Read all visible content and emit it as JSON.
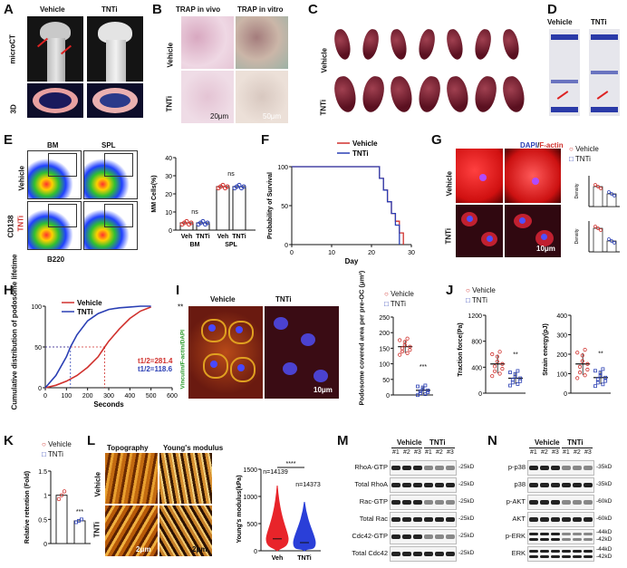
{
  "legend": {
    "vehicle": "Vehicle",
    "tnti": "TNTi"
  },
  "panelA": {
    "letter": "A",
    "row1": "microCT",
    "row2": "3D",
    "vehicle": "Vehicle",
    "tnti": "TNTi"
  },
  "panelB": {
    "letter": "B",
    "col1": "TRAP in vivo",
    "col2": "TRAP in vitro",
    "row1": "Vehicle",
    "row2": "TNTi",
    "scale1": "20μm",
    "scale2": "50μm"
  },
  "panelC": {
    "letter": "C",
    "row1": "Vehicle",
    "row2": "TNTi"
  },
  "panelD": {
    "letter": "D",
    "vehicle": "Vehicle",
    "tnti": "TNTi"
  },
  "panelE": {
    "letter": "E",
    "bm": "BM",
    "spl": "SPL",
    "row1": "Vehicle",
    "row2": "TNTi",
    "yaxis": "CD138",
    "xaxis": "B220",
    "ylabel": "MM Cells(%)",
    "ns": "ns",
    "groups": [
      "Veh",
      "TNTi",
      "Veh",
      "TNTi"
    ],
    "group_labels": [
      "BM",
      "SPL"
    ]
  },
  "panelF": {
    "letter": "F",
    "ylabel": "Probability of Survival",
    "xlabel": "Day"
  },
  "panelG": {
    "letter": "G",
    "stain_dapi": "DAPI",
    "stain_factin": "F-actin",
    "row1": "Vehicle",
    "row2": "TNTi",
    "scale": "10μm",
    "density_label": "Density"
  },
  "panelH": {
    "letter": "H",
    "ylabel": "Cumulative distribution of podosome lifetime",
    "xlabel": "Seconds",
    "sig": "**",
    "t_vehicle": "t1/2=281.4",
    "t_tnti": "t1/2=118.6"
  },
  "panelI": {
    "letter": "I",
    "vehicle": "Vehicle",
    "tnti": "TNTi",
    "side": "Vinculin/F-actin/DAPI",
    "scale": "10μm",
    "ylabel": "Podosome covered area per pre-OC (μm²)",
    "sig": "***"
  },
  "panelJ": {
    "letter": "J",
    "ylabel1": "Traction force(Pa)",
    "ylabel2": "Strain energy(pJ)",
    "sig": "**"
  },
  "panelK": {
    "letter": "K",
    "ylabel": "Relative retention (Fold)",
    "sig": "***"
  },
  "panelL": {
    "letter": "L",
    "col1": "Topography",
    "col2": "Young's modulus",
    "row1": "Vehicle",
    "row2": "TNTi",
    "scale1": "2μm",
    "scale2": "2μm",
    "ylabel": "Young's modulus(kPa)",
    "n1": "n=14139",
    "n2": "n=14373",
    "sig": "****",
    "x1": "Veh",
    "x2": "TNTi"
  },
  "panelM": {
    "letter": "M",
    "vehicle": "Vehicle",
    "tnti": "TNTi",
    "lanes": [
      "#1",
      "#2",
      "#3",
      "#1",
      "#2",
      "#3"
    ],
    "rows": [
      {
        "label": "RhoA-GTP",
        "kd": "25kD"
      },
      {
        "label": "Total RhoA",
        "kd": "25kD"
      },
      {
        "label": "Rac-GTP",
        "kd": "25kD"
      },
      {
        "label": "Total Rac",
        "kd": "25kD"
      },
      {
        "label": "Cdc42-GTP",
        "kd": "25kD"
      },
      {
        "label": "Total Cdc42",
        "kd": "25kD"
      }
    ]
  },
  "panelN": {
    "letter": "N",
    "vehicle": "Vehicle",
    "tnti": "TNTi",
    "lanes": [
      "#1",
      "#2",
      "#3",
      "#1",
      "#2",
      "#3"
    ],
    "rows": [
      {
        "label": "p-p38",
        "kd": "35kD"
      },
      {
        "label": "p38",
        "kd": "35kD"
      },
      {
        "label": "p-AKT",
        "kd": "60kD"
      },
      {
        "label": "AKT",
        "kd": "60kD"
      },
      {
        "label": "p-ERK",
        "kd": "44kD",
        "kd2": "42kD"
      },
      {
        "label": "ERK",
        "kd": "44kD",
        "kd2": "42kD"
      }
    ]
  },
  "chart_data": [
    {
      "panel": "E",
      "type": "bar",
      "categories": [
        "Veh BM",
        "TNTi BM",
        "Veh SPL",
        "TNTi SPL"
      ],
      "values": [
        4,
        4,
        24,
        24
      ],
      "ylabel": "MM Cells(%)",
      "ylim": [
        0,
        40
      ],
      "yticks": [
        0,
        10,
        20,
        30,
        40
      ]
    },
    {
      "panel": "F",
      "type": "line",
      "xlabel": "Day",
      "ylabel": "Probability of Survival",
      "xlim": [
        0,
        30
      ],
      "ylim": [
        0,
        100
      ],
      "xticks": [
        0,
        10,
        20,
        30
      ],
      "yticks": [
        0,
        50,
        100
      ],
      "series": [
        {
          "name": "Vehicle",
          "x": [
            0,
            21,
            22,
            23,
            24,
            25,
            26,
            27,
            28
          ],
          "y": [
            100,
            100,
            85,
            70,
            55,
            40,
            30,
            15,
            0
          ]
        },
        {
          "name": "TNTi",
          "x": [
            0,
            21,
            22,
            23,
            24,
            25,
            26,
            27
          ],
          "y": [
            100,
            100,
            85,
            70,
            55,
            40,
            25,
            0
          ]
        }
      ]
    },
    {
      "panel": "H",
      "type": "line",
      "xlabel": "Seconds",
      "xlim": [
        0,
        600
      ],
      "ylim": [
        0,
        100
      ],
      "xticks": [
        0,
        100,
        200,
        300,
        400,
        500,
        600
      ],
      "yticks": [
        0,
        50,
        100
      ],
      "series": [
        {
          "name": "Vehicle",
          "x": [
            0,
            50,
            100,
            150,
            200,
            250,
            281,
            300,
            350,
            400,
            450,
            500
          ],
          "y": [
            0,
            3,
            8,
            15,
            25,
            38,
            50,
            57,
            72,
            85,
            94,
            99
          ]
        },
        {
          "name": "TNTi",
          "x": [
            0,
            50,
            100,
            119,
            150,
            200,
            250,
            300,
            350,
            400,
            450,
            500
          ],
          "y": [
            0,
            15,
            38,
            50,
            65,
            82,
            91,
            96,
            98,
            99,
            100,
            100
          ]
        }
      ]
    },
    {
      "panel": "I",
      "type": "scatter",
      "ylabel": "Podosome covered area per pre-OC (μm²)",
      "ylim": [
        0,
        250
      ],
      "yticks": [
        0,
        50,
        100,
        150,
        200,
        250
      ],
      "categories": [
        "Vehicle",
        "TNTi"
      ],
      "values": [
        155,
        15
      ]
    },
    {
      "panel": "J",
      "type": "scatter",
      "ylabel": "Traction force(Pa)",
      "ylim": [
        0,
        1200
      ],
      "yticks": [
        0,
        400,
        800,
        1200
      ],
      "categories": [
        "Vehicle",
        "TNTi"
      ],
      "values": [
        450,
        230
      ]
    },
    {
      "panel": "J",
      "type": "scatter",
      "ylabel": "Strain energy(pJ)",
      "ylim": [
        0,
        400
      ],
      "yticks": [
        0,
        100,
        200,
        300,
        400
      ],
      "categories": [
        "Vehicle",
        "TNTi"
      ],
      "values": [
        150,
        80
      ]
    },
    {
      "panel": "K",
      "type": "bar",
      "ylabel": "Relative retention (Fold)",
      "ylim": [
        0,
        1.5
      ],
      "yticks": [
        0.0,
        0.5,
        1.0,
        1.5
      ],
      "categories": [
        "Vehicle",
        "TNTi"
      ],
      "values": [
        1.0,
        0.47
      ]
    },
    {
      "panel": "L",
      "type": "violin",
      "ylabel": "Young's modulus(kPa)",
      "ylim": [
        0,
        1500
      ],
      "yticks": [
        0,
        500,
        1000,
        1500
      ],
      "categories": [
        "Veh",
        "TNTi"
      ],
      "values": [
        220,
        150
      ]
    }
  ]
}
